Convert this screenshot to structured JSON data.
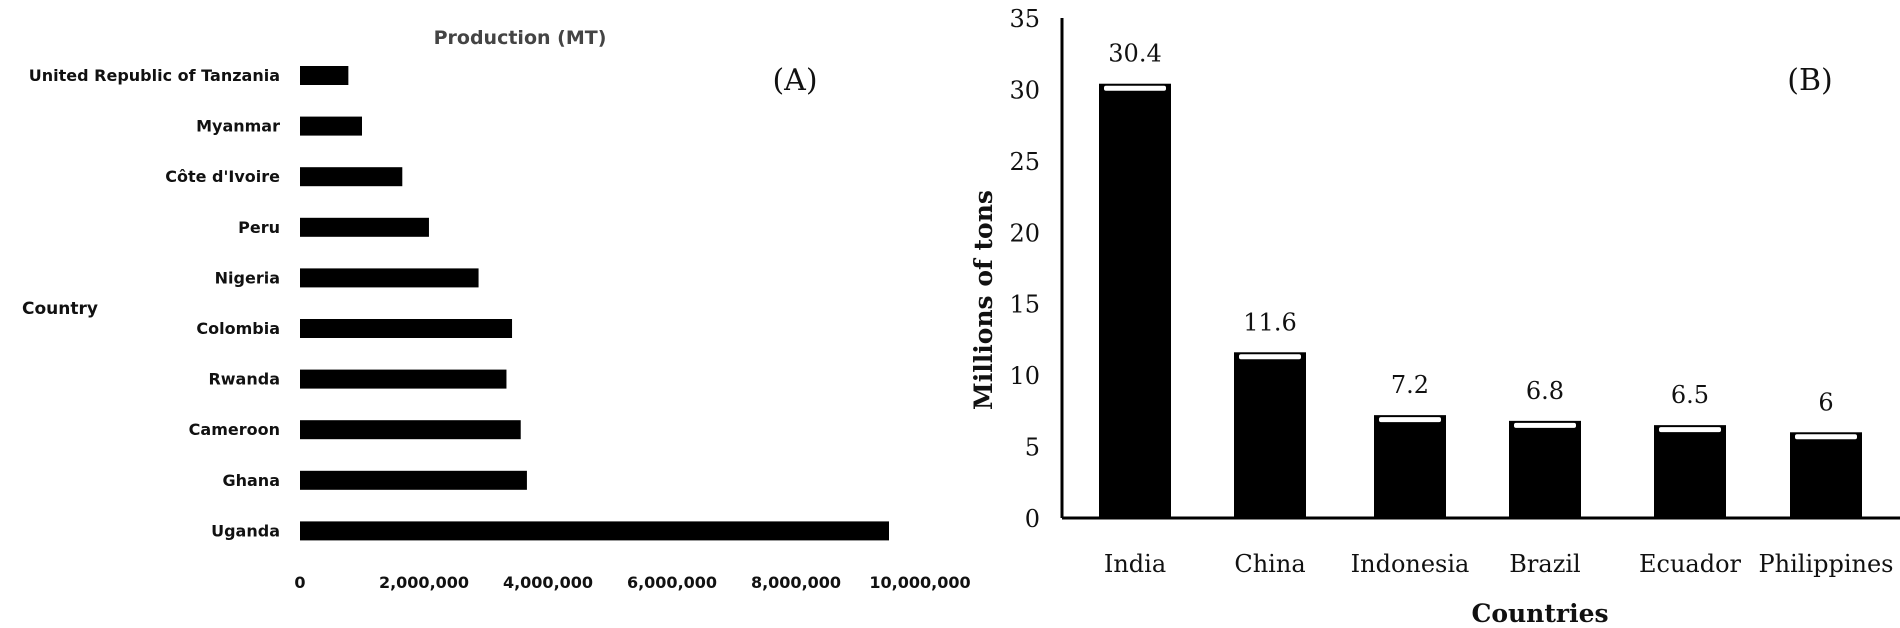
{
  "chart_data": [
    {
      "panel_label": "(A)",
      "type": "bar",
      "orientation": "horizontal",
      "title": "Production (MT)",
      "xlabel": "",
      "ylabel": "Country",
      "categories": [
        "United Republic of Tanzania",
        "Myanmar",
        "Côte d'Ivoire",
        "Peru",
        "Nigeria",
        "Colombia",
        "Rwanda",
        "Cameroon",
        "Ghana",
        "Uganda"
      ],
      "values": [
        780000,
        1000000,
        1650000,
        2080000,
        2880000,
        3420000,
        3330000,
        3560000,
        3660000,
        9500000
      ],
      "xlim": [
        0,
        10000000
      ],
      "xticks": [
        {
          "value": 0,
          "label": "0"
        },
        {
          "value": 2000000,
          "label": "2,000,000"
        },
        {
          "value": 4000000,
          "label": "4,000,000"
        },
        {
          "value": 6000000,
          "label": "6,000,000"
        },
        {
          "value": 8000000,
          "label": "8,000,000"
        },
        {
          "value": 10000000,
          "label": "10,000,000"
        }
      ],
      "grid": false,
      "bar_color": "#000000"
    },
    {
      "panel_label": "(B)",
      "type": "bar",
      "orientation": "vertical",
      "title": "",
      "xlabel": "Countries",
      "ylabel": "Millions of tons",
      "categories": [
        "India",
        "China",
        "Indonesia",
        "Brazil",
        "Ecuador",
        "Philippines"
      ],
      "values": [
        30.4,
        11.6,
        7.2,
        6.8,
        6.5,
        6
      ],
      "data_labels": [
        "30.4",
        "11.6",
        "7.2",
        "6.8",
        "6.5",
        "6"
      ],
      "ylim": [
        0,
        35
      ],
      "yticks": [
        0,
        5,
        10,
        15,
        20,
        25,
        30,
        35
      ],
      "grid": false,
      "bar_color": "#000000"
    }
  ]
}
